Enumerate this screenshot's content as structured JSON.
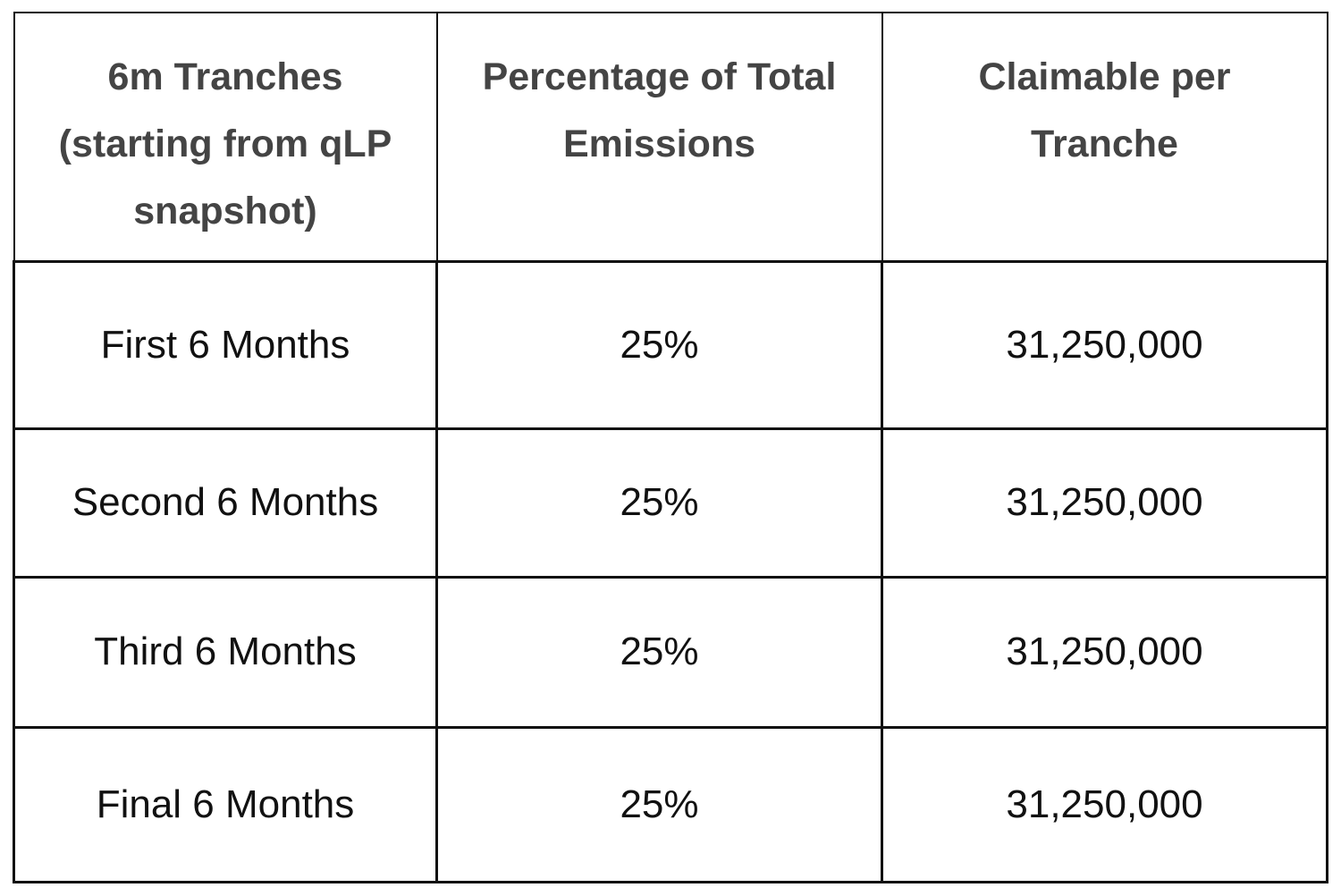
{
  "table": {
    "header": [
      "6m Tranches (starting from qLP snapshot)",
      "Percentage of Total Emissions",
      "Claimable per Tranche"
    ],
    "rows": [
      [
        "First 6 Months",
        "25%",
        "31,250,000"
      ],
      [
        "Second 6 Months",
        "25%",
        "31,250,000"
      ],
      [
        "Third 6 Months",
        "25%",
        "31,250,000"
      ],
      [
        "Final 6 Months",
        "25%",
        "31,250,000"
      ]
    ]
  }
}
